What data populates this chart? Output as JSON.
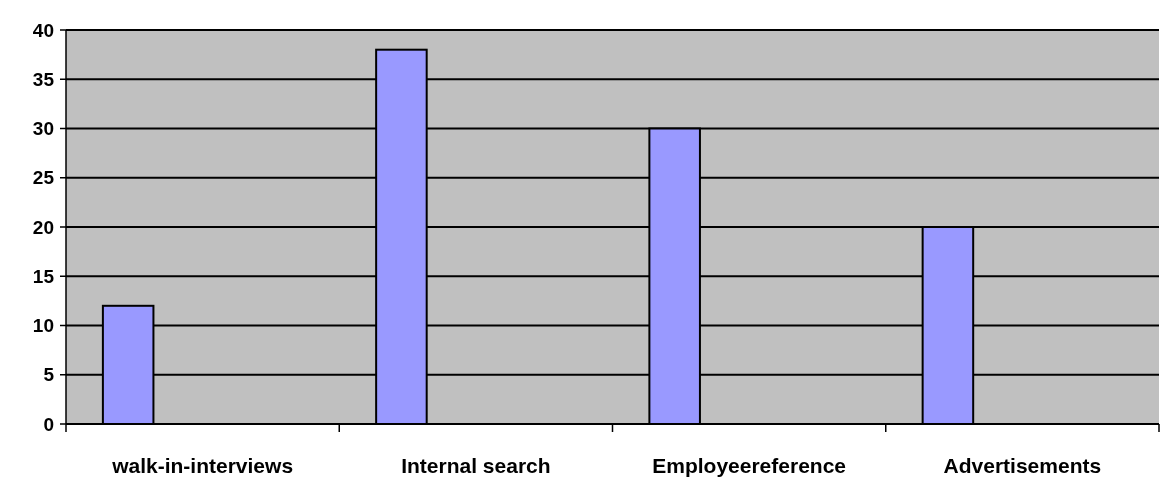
{
  "chart_data": {
    "type": "bar",
    "categories": [
      "walk-in-interviews",
      "Internal search",
      "Employeereference",
      "Advertisements"
    ],
    "values": [
      12,
      38,
      30,
      20
    ],
    "color": "#9999ff",
    "ylim": [
      0,
      40
    ],
    "yticks": [
      0,
      5,
      10,
      15,
      20,
      25,
      30,
      35,
      40
    ],
    "grid": "y"
  }
}
